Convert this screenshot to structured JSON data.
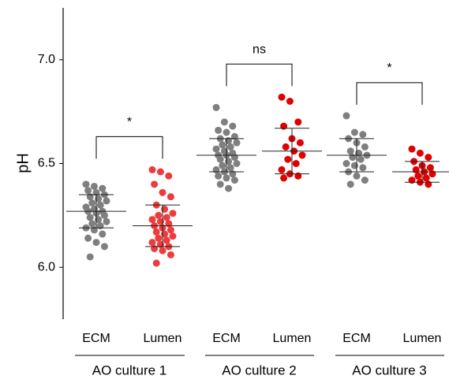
{
  "chart_data": {
    "type": "strip",
    "y_label": "pH",
    "ylim": [
      5.75,
      7.25
    ],
    "yticks": [
      {
        "value": 6.0,
        "label": "6.0"
      },
      {
        "value": 6.5,
        "label": "6.5"
      },
      {
        "value": 7.0,
        "label": "7.0"
      }
    ],
    "groups": [
      {
        "label": "AO culture 1",
        "significance": "*",
        "series": [
          {
            "name": "ECM",
            "color": "#7f7f7f",
            "mean": 6.27,
            "sd": 0.08,
            "values": [
              6.4,
              6.39,
              6.38,
              6.37,
              6.36,
              6.35,
              6.34,
              6.33,
              6.32,
              6.31,
              6.3,
              6.29,
              6.28,
              6.27,
              6.27,
              6.26,
              6.25,
              6.24,
              6.23,
              6.22,
              6.21,
              6.2,
              6.19,
              6.18,
              6.16,
              6.14,
              6.12,
              6.1,
              6.05
            ]
          },
          {
            "name": "Lumen",
            "color": "#ee3b3b",
            "mean": 6.2,
            "sd": 0.1,
            "values": [
              6.47,
              6.46,
              6.44,
              6.4,
              6.36,
              6.34,
              6.3,
              6.28,
              6.26,
              6.25,
              6.24,
              6.23,
              6.22,
              6.21,
              6.2,
              6.19,
              6.18,
              6.17,
              6.16,
              6.15,
              6.14,
              6.13,
              6.12,
              6.11,
              6.1,
              6.09,
              6.08,
              6.06,
              6.02
            ]
          }
        ]
      },
      {
        "label": "AO culture 2",
        "significance": "ns",
        "series": [
          {
            "name": "ECM",
            "color": "#7f7f7f",
            "mean": 6.54,
            "sd": 0.08,
            "values": [
              6.77,
              6.7,
              6.68,
              6.66,
              6.65,
              6.63,
              6.62,
              6.61,
              6.6,
              6.59,
              6.58,
              6.57,
              6.56,
              6.55,
              6.54,
              6.54,
              6.53,
              6.52,
              6.51,
              6.5,
              6.49,
              6.48,
              6.47,
              6.46,
              6.45,
              6.44,
              6.43,
              6.42,
              6.4,
              6.38
            ]
          },
          {
            "name": "Lumen",
            "color": "#e00000",
            "mean": 6.56,
            "sd": 0.11,
            "values": [
              6.82,
              6.8,
              6.7,
              6.68,
              6.62,
              6.6,
              6.58,
              6.56,
              6.54,
              6.52,
              6.5,
              6.47,
              6.45,
              6.44,
              6.43
            ]
          }
        ]
      },
      {
        "label": "AO culture 3",
        "significance": "*",
        "series": [
          {
            "name": "ECM",
            "color": "#7f7f7f",
            "mean": 6.54,
            "sd": 0.08,
            "values": [
              6.73,
              6.65,
              6.64,
              6.62,
              6.6,
              6.58,
              6.56,
              6.55,
              6.54,
              6.53,
              6.52,
              6.5,
              6.49,
              6.48,
              6.46,
              6.44,
              6.42,
              6.4
            ]
          },
          {
            "name": "Lumen",
            "color": "#e00000",
            "mean": 6.46,
            "sd": 0.05,
            "values": [
              6.57,
              6.55,
              6.53,
              6.51,
              6.49,
              6.48,
              6.47,
              6.46,
              6.45,
              6.44,
              6.43,
              6.42,
              6.41,
              6.4
            ]
          }
        ]
      }
    ]
  }
}
